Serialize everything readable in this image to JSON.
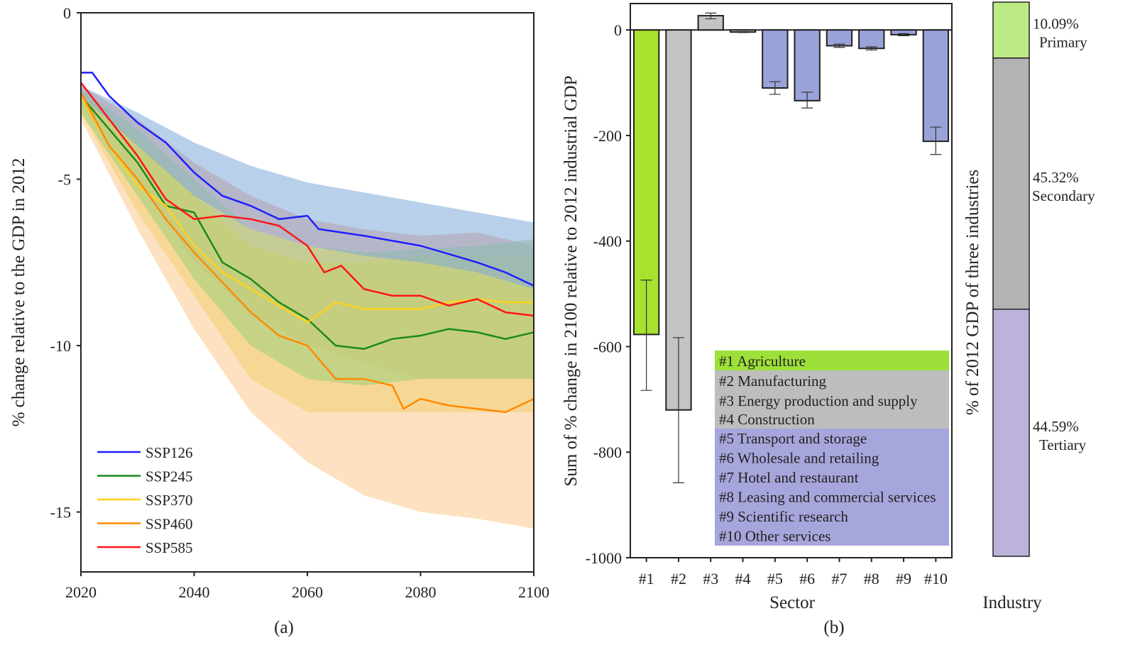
{
  "chart_data": [
    {
      "type": "line",
      "panel_label": "(a)",
      "ylabel": "% change relative to the GDP in 2012",
      "xlim": [
        2020,
        2100
      ],
      "ylim": [
        -16.8,
        0
      ],
      "xticks": [
        2020,
        2040,
        2060,
        2080,
        2100
      ],
      "yticks": [
        0,
        -5,
        -10,
        -15
      ],
      "legend_position": "bottom-left",
      "band_x": [
        2020,
        2030,
        2040,
        2050,
        2060,
        2070,
        2080,
        2090,
        2100
      ],
      "series": [
        {
          "name": "SSP126",
          "color": "#1f1fff",
          "band_color": "#7fa9d8",
          "x": [
            2020,
            2022,
            2025,
            2030,
            2035,
            2040,
            2045,
            2050,
            2055,
            2060,
            2062,
            2070,
            2080,
            2090,
            2095,
            2100
          ],
          "y": [
            -1.8,
            -1.8,
            -2.5,
            -3.3,
            -3.9,
            -4.8,
            -5.5,
            -5.8,
            -6.2,
            -6.1,
            -6.5,
            -6.7,
            -7.0,
            -7.5,
            -7.8,
            -8.2
          ],
          "band_upper": [
            -2.2,
            -3.0,
            -3.9,
            -4.6,
            -5.1,
            -5.4,
            -5.7,
            -6.0,
            -6.3
          ],
          "band_lower": [
            -2.5,
            -4.0,
            -5.5,
            -6.5,
            -7.0,
            -7.3,
            -7.5,
            -7.8,
            -8.3
          ]
        },
        {
          "name": "SSP245",
          "color": "#1a8a1a",
          "band_color": "#9ccf7a",
          "x": [
            2020,
            2025,
            2030,
            2035,
            2040,
            2045,
            2050,
            2055,
            2060,
            2065,
            2070,
            2075,
            2080,
            2085,
            2090,
            2095,
            2100
          ],
          "y": [
            -2.5,
            -3.5,
            -4.5,
            -5.8,
            -6.0,
            -7.5,
            -8.0,
            -8.7,
            -9.2,
            -10.0,
            -10.1,
            -9.8,
            -9.7,
            -9.5,
            -9.6,
            -9.8,
            -9.6
          ],
          "band_upper": [
            -2.3,
            -3.5,
            -5.0,
            -6.5,
            -7.0,
            -7.2,
            -7.1,
            -7.0,
            -6.8
          ],
          "band_lower": [
            -3.0,
            -5.5,
            -8.0,
            -10.0,
            -11.0,
            -11.2,
            -11.0,
            -11.0,
            -11.0
          ]
        },
        {
          "name": "SSP370",
          "color": "#ffd21f",
          "band_color": "#f3d070",
          "x": [
            2020,
            2025,
            2030,
            2035,
            2040,
            2045,
            2050,
            2055,
            2060,
            2065,
            2070,
            2075,
            2080,
            2085,
            2090,
            2095,
            2100
          ],
          "y": [
            -2.5,
            -4.0,
            -5.2,
            -5.8,
            -7.0,
            -7.8,
            -8.3,
            -8.8,
            -9.3,
            -8.7,
            -8.9,
            -8.9,
            -8.9,
            -8.7,
            -8.6,
            -8.7,
            -8.7
          ],
          "band_upper": [
            -2.4,
            -4.0,
            -5.5,
            -7.0,
            -7.5,
            -7.5,
            -7.3,
            -7.3,
            -7.3
          ],
          "band_lower": [
            -3.0,
            -6.0,
            -8.5,
            -11.0,
            -12.0,
            -12.0,
            -12.0,
            -12.0,
            -12.0
          ]
        },
        {
          "name": "SSP460",
          "color": "#ff8a00",
          "band_color": "#fbc98e",
          "x": [
            2020,
            2025,
            2030,
            2035,
            2040,
            2045,
            2050,
            2055,
            2060,
            2065,
            2070,
            2075,
            2077,
            2080,
            2085,
            2090,
            2095,
            2100
          ],
          "y": [
            -2.4,
            -4.0,
            -5.0,
            -6.2,
            -7.2,
            -8.1,
            -9.0,
            -9.7,
            -10.0,
            -11.0,
            -11.0,
            -11.2,
            -11.9,
            -11.6,
            -11.8,
            -11.9,
            -12.0,
            -11.6
          ],
          "band_upper": [
            -2.4,
            -3.8,
            -5.5,
            -7.0,
            -7.5,
            -8.0,
            -8.0,
            -8.0,
            -8.5
          ],
          "band_lower": [
            -3.2,
            -6.5,
            -9.5,
            -12.0,
            -13.5,
            -14.5,
            -15.0,
            -15.2,
            -15.5
          ]
        },
        {
          "name": "SSP585",
          "color": "#ff1414",
          "band_color": "#ef9a7a",
          "x": [
            2020,
            2025,
            2030,
            2035,
            2040,
            2045,
            2050,
            2055,
            2060,
            2063,
            2066,
            2070,
            2075,
            2080,
            2085,
            2090,
            2095,
            2100
          ],
          "y": [
            -2.1,
            -3.2,
            -4.3,
            -5.6,
            -6.2,
            -6.1,
            -6.2,
            -6.4,
            -7.0,
            -7.8,
            -7.6,
            -8.3,
            -8.5,
            -8.5,
            -8.8,
            -8.6,
            -9.0,
            -9.1
          ],
          "band_upper": [
            -2.2,
            -3.2,
            -4.5,
            -5.5,
            -6.2,
            -6.5,
            -6.7,
            -6.6,
            -7.0
          ],
          "band_lower": [
            -2.8,
            -5.0,
            -7.5,
            -9.0,
            -10.0,
            -10.5,
            -11.0,
            -11.0,
            -11.0
          ]
        }
      ]
    },
    {
      "type": "bar",
      "panel_label": "(b)",
      "xlabel": "Sector",
      "ylabel": "Sum of % change in 2100 relative to 2012 industrial GDP",
      "ylim": [
        -1000,
        50
      ],
      "yticks": [
        0,
        -200,
        -400,
        -600,
        -800,
        -1000
      ],
      "categories": [
        "#1",
        "#2",
        "#3",
        "#4",
        "#5",
        "#6",
        "#7",
        "#8",
        "#9",
        "#10"
      ],
      "values": [
        -577,
        -720,
        27,
        -4,
        -110,
        -134,
        -30,
        -35,
        -9,
        -211
      ],
      "error_low": [
        -683,
        -858,
        21,
        -5,
        -122,
        -148,
        -33,
        -38,
        -11,
        -236
      ],
      "error_high": [
        -474,
        -583,
        32,
        -3,
        -98,
        -118,
        -27,
        -32,
        -7,
        -184
      ],
      "bar_groups": [
        "primary",
        "secondary",
        "secondary",
        "secondary",
        "tertiary",
        "tertiary",
        "tertiary",
        "tertiary",
        "tertiary",
        "tertiary"
      ],
      "colors": {
        "primary": "#a6e22e",
        "secondary": "#c4c4c4",
        "tertiary": "#9aa3d8"
      },
      "legend_colors": {
        "primary": "#9ee03a",
        "secondary": "#bdbdbd",
        "tertiary": "#a7a6dc"
      },
      "legend_position": "bottom-right",
      "legend": [
        {
          "label": "#1 Agriculture",
          "group": "primary"
        },
        {
          "label": "#2 Manufacturing",
          "group": "secondary"
        },
        {
          "label": "#3 Energy production and supply",
          "group": "secondary"
        },
        {
          "label": "#4 Construction",
          "group": "secondary"
        },
        {
          "label": "#5 Transport and storage",
          "group": "tertiary"
        },
        {
          "label": "#6 Wholesale and retailing",
          "group": "tertiary"
        },
        {
          "label": "#7 Hotel and restaurant",
          "group": "tertiary"
        },
        {
          "label": "#8 Leasing and commercial services",
          "group": "tertiary"
        },
        {
          "label": "#9 Scientific research",
          "group": "tertiary"
        },
        {
          "label": "#10 Other services",
          "group": "tertiary"
        }
      ]
    },
    {
      "type": "bar",
      "stacked": true,
      "xlabel": "Industry",
      "ylabel": "% of 2012 GDP of three industries",
      "segments": [
        {
          "name": "Primary",
          "value": 10.09,
          "label": "10.09%",
          "color": "#bcea84"
        },
        {
          "name": "Secondary",
          "value": 45.32,
          "label": "45.32%",
          "color": "#b3b3b3"
        },
        {
          "name": "Tertiary",
          "value": 44.59,
          "label": "44.59%",
          "color": "#bdb2da"
        }
      ]
    }
  ]
}
